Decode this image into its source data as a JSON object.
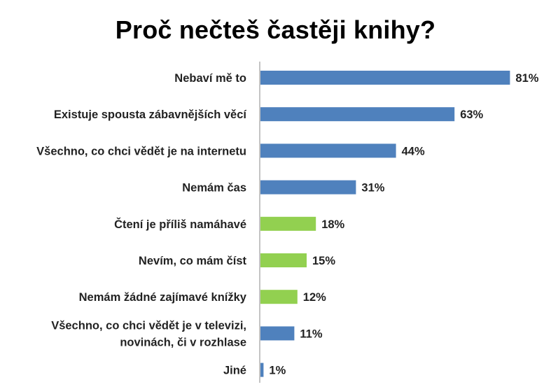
{
  "chart_data": {
    "type": "bar",
    "orientation": "horizontal",
    "title": "Proč nečteš častěji knihy?",
    "categories": [
      "Nebaví mě to",
      "Existuje spousta zábavnějších věcí",
      "Všechno, co chci vědět je na internetu",
      "Nemám čas",
      "Čtení je příliš namáhavé",
      "Nevím, co mám číst",
      "Nemám žádné zajímavé knížky",
      "Všechno, co chci vědět je v televizi,\nnovinách, či v rozhlase",
      "Jiné"
    ],
    "values": [
      81,
      63,
      44,
      31,
      18,
      15,
      12,
      11,
      1
    ],
    "value_labels": [
      "81%",
      "63%",
      "44%",
      "31%",
      "18%",
      "15%",
      "12%",
      "11%",
      "1%"
    ],
    "bar_colors": [
      "#4f81bd",
      "#4f81bd",
      "#4f81bd",
      "#4f81bd",
      "#92d050",
      "#92d050",
      "#92d050",
      "#4f81bd",
      "#4f81bd"
    ],
    "xlim": [
      0,
      100
    ],
    "grid": false,
    "legend": "none"
  }
}
